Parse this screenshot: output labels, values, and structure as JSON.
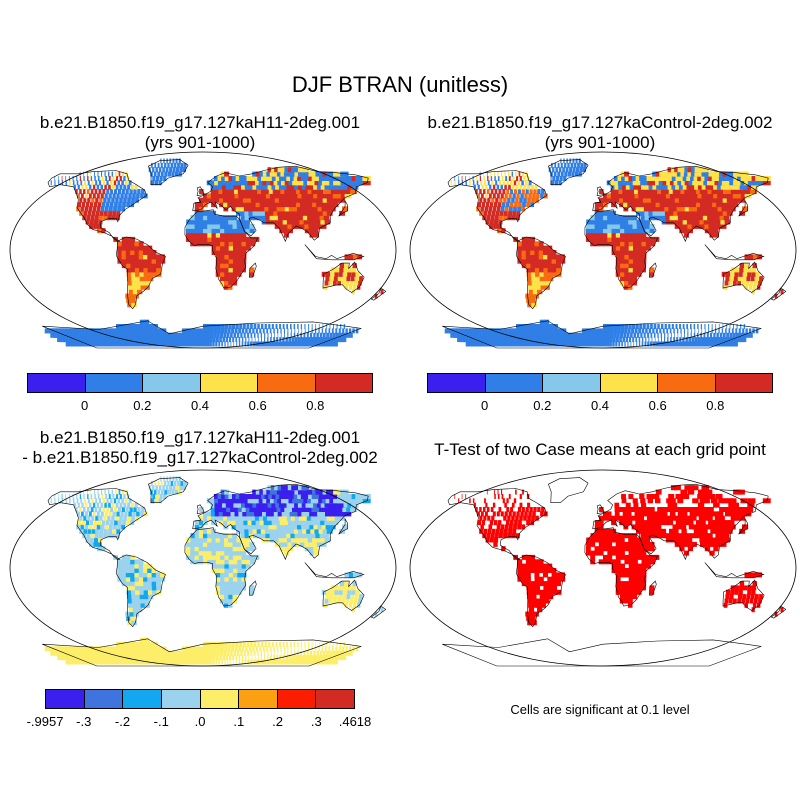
{
  "title": "DJF BTRAN (unitless)",
  "panels": {
    "top_left": {
      "title_line1": "b.e21.B1850.f19_g17.127kaH11-2deg.001",
      "title_line2": "(yrs 901-1000)"
    },
    "top_right": {
      "title_line1": "b.e21.B1850.f19_g17.127kaControl-2deg.002",
      "title_line2": "(yrs 901-1000)"
    },
    "bottom_left": {
      "title_line1": "b.e21.B1850.f19_g17.127kaH11-2deg.001",
      "title_line2": "- b.e21.B1850.f19_g17.127kaControl-2deg.002"
    },
    "bottom_right": {
      "title": "T-Test of two Case means at each grid point",
      "note": "Cells are significant at 0.1 level"
    }
  },
  "colorbars": {
    "abs": {
      "colors": [
        "#3a1fef",
        "#2f7fe6",
        "#85c8ec",
        "#fde24a",
        "#f96b11",
        "#d42a24"
      ],
      "labels": [
        "0",
        "0.2",
        "0.4",
        "0.6",
        "0.8"
      ]
    },
    "diff": {
      "colors": [
        "#3a1fef",
        "#3f73dd",
        "#13a7ef",
        "#9bd3ee",
        "#fdee6a",
        "#fba111",
        "#fc1c00",
        "#d42a24"
      ],
      "labels": [
        "-.9957",
        "-.3",
        "-.2",
        "-.1",
        ".0",
        ".1",
        ".2",
        ".3",
        ".4618"
      ]
    }
  },
  "colors": {
    "significant": "#ff0000",
    "land_outline": "#000000"
  }
}
